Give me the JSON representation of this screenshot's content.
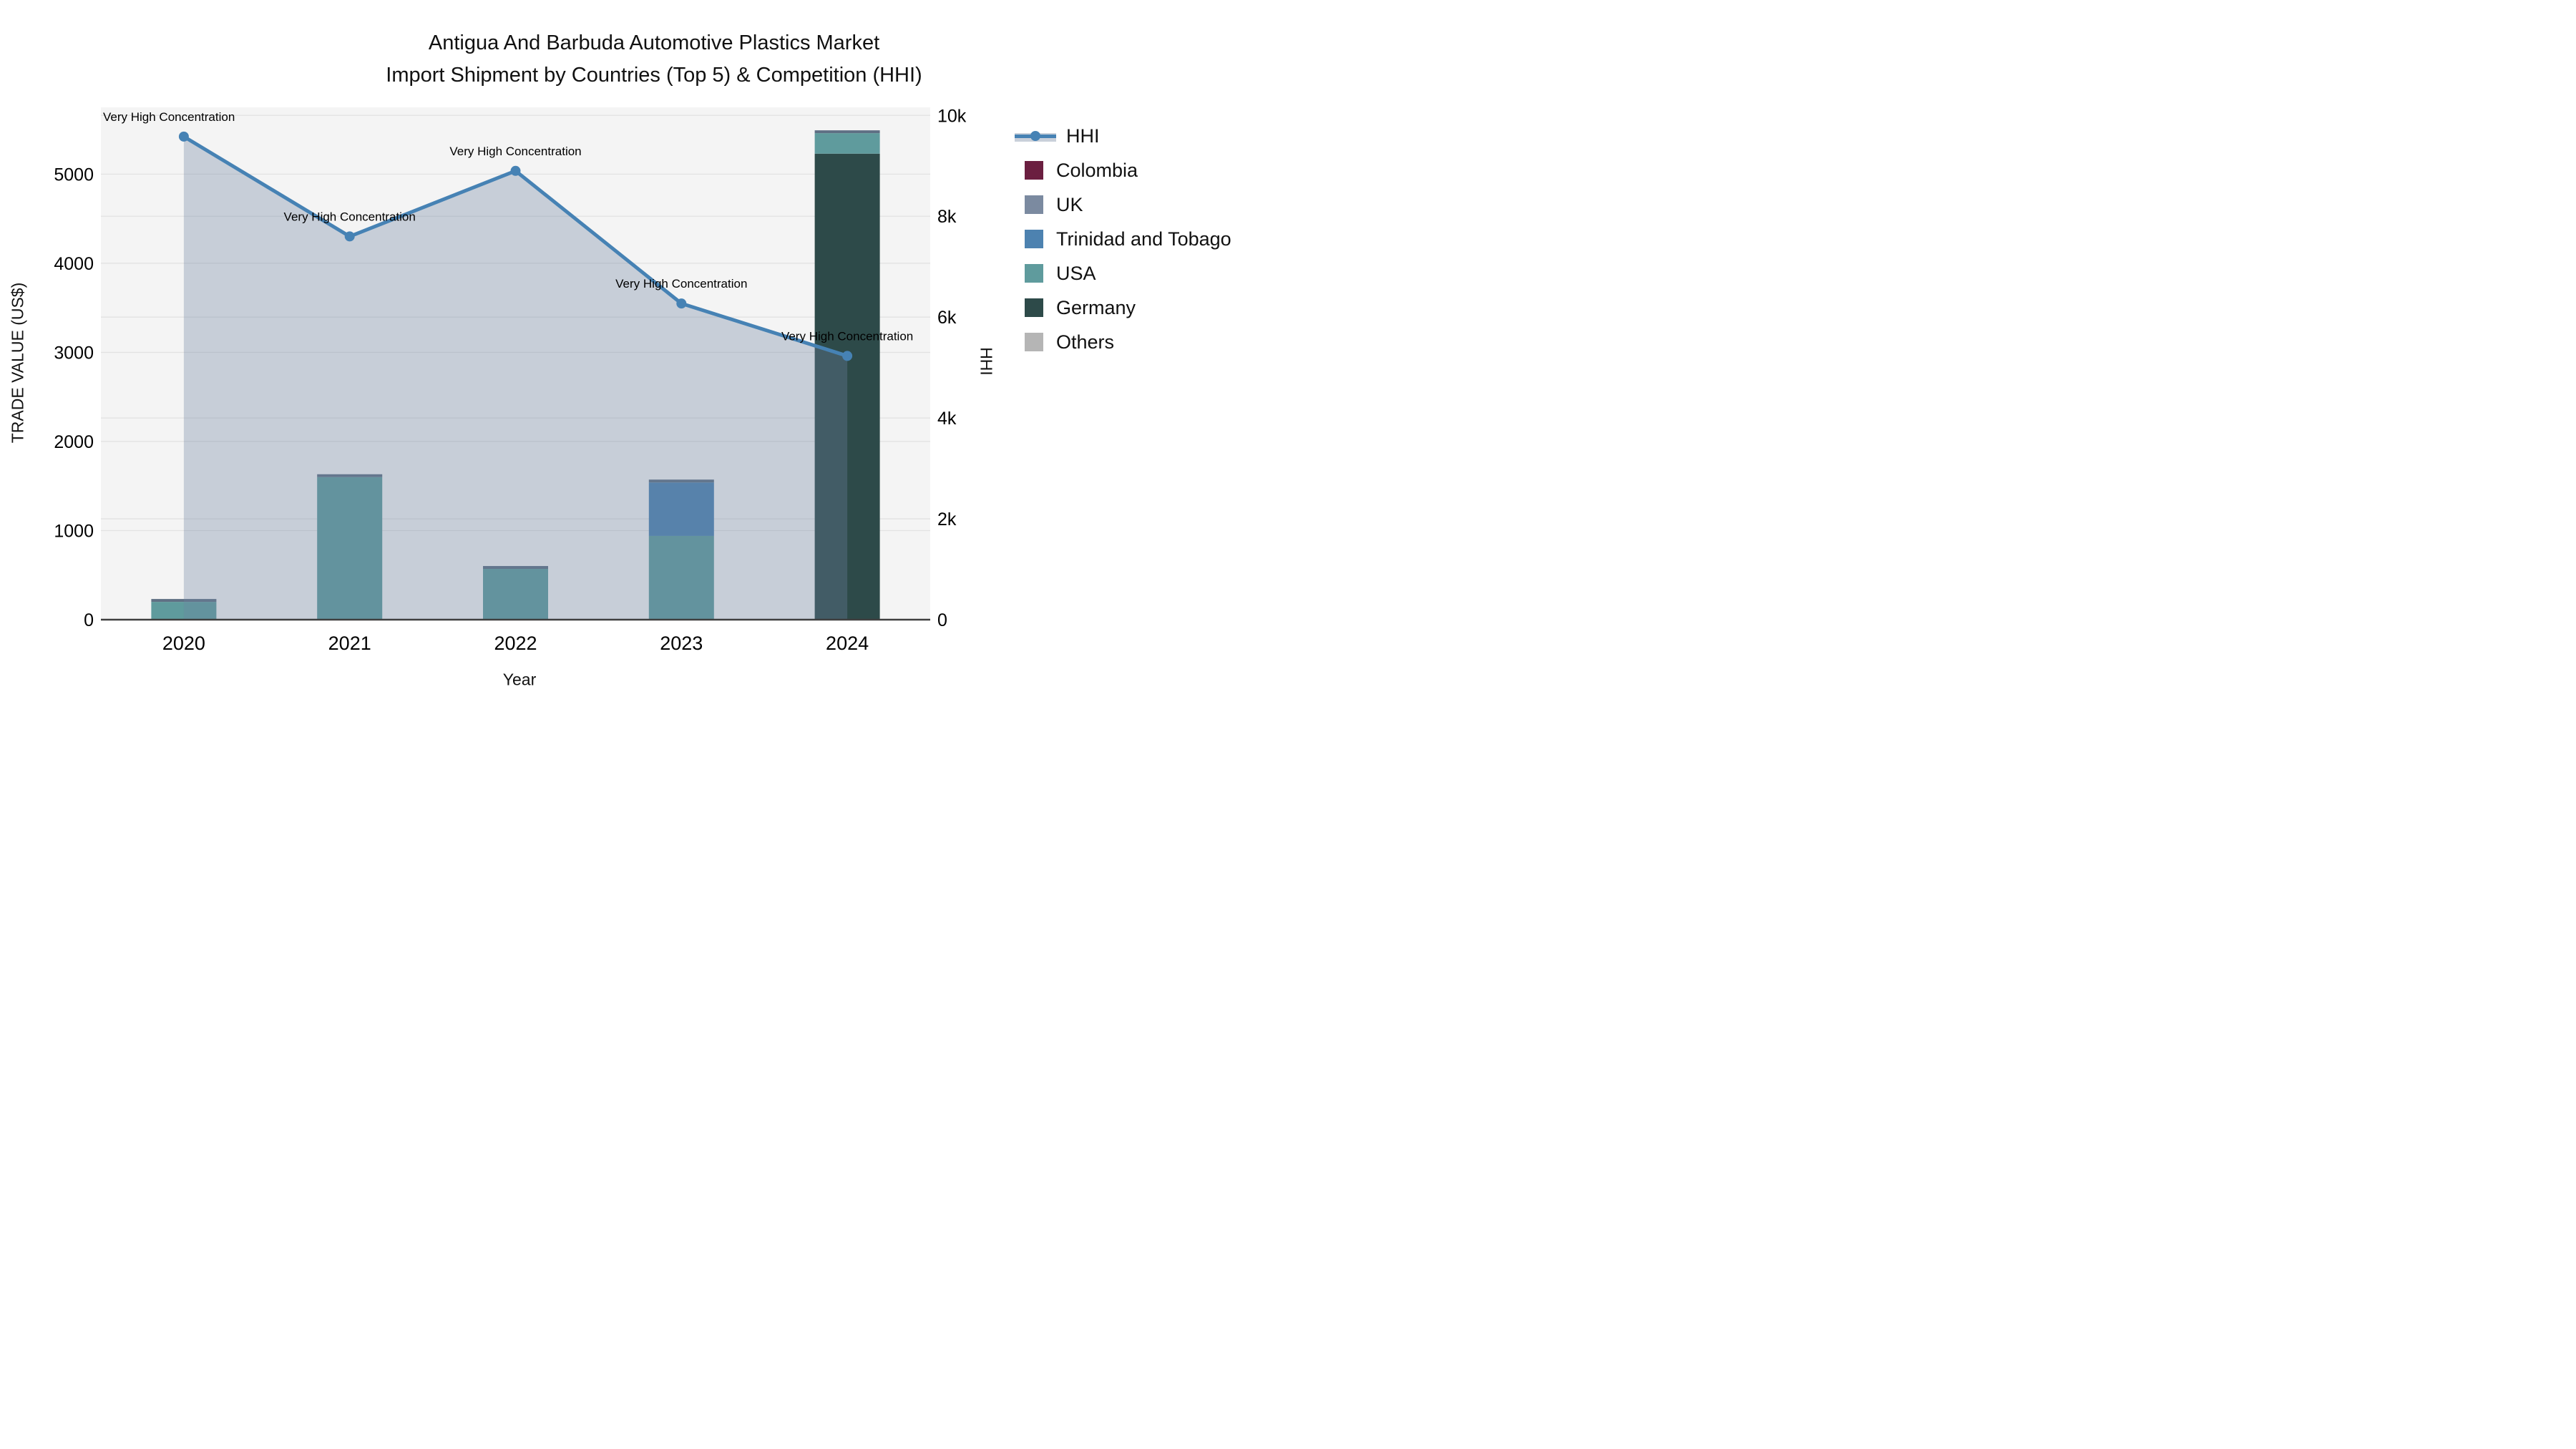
{
  "title": {
    "line1": "Antigua And Barbuda Automotive Plastics Market",
    "line2": "Import Shipment by Countries (Top 5) & Competition (HHI)"
  },
  "legend": {
    "items": [
      {
        "label": "HHI",
        "type": "line",
        "color": "#4682b4",
        "band": "#c9d0da"
      },
      {
        "label": "Colombia",
        "type": "swatch",
        "color": "#6b1f40"
      },
      {
        "label": "UK",
        "type": "swatch",
        "color": "#7b8aa0"
      },
      {
        "label": "Trinidad and Tobago",
        "type": "swatch",
        "color": "#4d82b0"
      },
      {
        "label": "USA",
        "type": "swatch",
        "color": "#5f9b9d"
      },
      {
        "label": "Germany",
        "type": "swatch",
        "color": "#2d4a49"
      },
      {
        "label": "Others",
        "type": "swatch",
        "color": "#b5b5b5"
      }
    ]
  },
  "chart_data": {
    "type": "combo-stacked-bar-line",
    "title": "Antigua And Barbuda Automotive Plastics Market Import Shipment by Countries (Top 5) & Competition (HHI)",
    "categories": [
      "2020",
      "2021",
      "2022",
      "2023",
      "2024"
    ],
    "bar_series": [
      {
        "name": "Colombia",
        "color": "#6b1f40",
        "values": [
          0,
          0,
          0,
          0,
          0
        ]
      },
      {
        "name": "UK",
        "color": "#7b8aa0",
        "values": [
          0,
          0,
          0,
          0,
          0
        ]
      },
      {
        "name": "Others",
        "color": "#b5b5b5",
        "values": [
          0,
          0,
          0,
          0,
          0
        ]
      },
      {
        "name": "Germany",
        "color": "#2d4a49",
        "values": [
          0,
          0,
          0,
          0,
          5230
        ]
      },
      {
        "name": "USA",
        "color": "#5f9b9d",
        "values": [
          200,
          1600,
          570,
          940,
          230
        ]
      },
      {
        "name": "Trinidad and Tobago",
        "color": "#4d82b0",
        "values": [
          0,
          0,
          0,
          600,
          0
        ]
      }
    ],
    "line_series": {
      "name": "HHI",
      "color": "#4682b4",
      "values": [
        9580,
        7600,
        8900,
        6270,
        5230
      ],
      "area_fill": "rgba(108, 130, 160, 0.33)",
      "marker": "circle"
    },
    "annotations": [
      {
        "x": "2020",
        "text": "Very High Concentration"
      },
      {
        "x": "2021",
        "text": "Very High Concentration"
      },
      {
        "x": "2022",
        "text": "Very High Concentration"
      },
      {
        "x": "2023",
        "text": "Very High Concentration"
      },
      {
        "x": "2024",
        "text": "Very High Concentration"
      }
    ],
    "axes": {
      "y_left": {
        "label": "TRADE VALUE (US$)",
        "range": [
          0,
          5750
        ],
        "ticks": [
          {
            "v": 0,
            "label": "0"
          },
          {
            "v": 1000,
            "label": "1000"
          },
          {
            "v": 2000,
            "label": "2000"
          },
          {
            "v": 3000,
            "label": "3000"
          },
          {
            "v": 4000,
            "label": "4000"
          },
          {
            "v": 5000,
            "label": "5000"
          }
        ]
      },
      "y_right": {
        "label": "HHI",
        "range": [
          0,
          10160
        ],
        "ticks": [
          {
            "v": 0,
            "label": "0"
          },
          {
            "v": 2000,
            "label": "2k"
          },
          {
            "v": 4000,
            "label": "4k"
          },
          {
            "v": 6000,
            "label": "6k"
          },
          {
            "v": 8000,
            "label": "8k"
          },
          {
            "v": 10000,
            "label": "10k"
          }
        ]
      },
      "x": {
        "label": "Year"
      }
    },
    "style": {
      "plot_bg": "#f4f4f4",
      "grid_color": "#e2e2e2",
      "axis_line_color": "#3f3f3f",
      "bar_cap_color": "#5f7084",
      "legend_position": "right",
      "grid": true
    }
  }
}
